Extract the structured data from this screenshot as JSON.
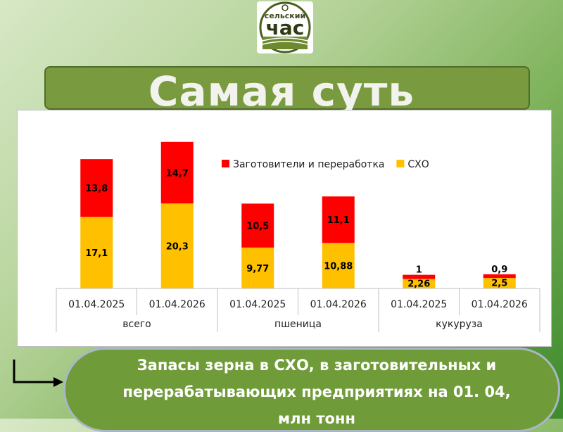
{
  "logo": {
    "text_top": "сельский",
    "text_main": "час"
  },
  "banner": {
    "title": "Самая суть"
  },
  "caption": {
    "line1": "Запасы зерна в СХО,  в заготовительных и",
    "line2": "перерабатывающих предприятиях  на 01. 04,",
    "line3": "млн тонн"
  },
  "chart_data": {
    "type": "bar",
    "stacked": true,
    "title": "",
    "categories": [
      "01.04.2025",
      "01.04.2026",
      "01.04.2025",
      "01.04.2026",
      "01.04.2025",
      "01.04.2026"
    ],
    "groups": [
      {
        "label": "всего",
        "categories": [
          0,
          1
        ]
      },
      {
        "label": "пшеница",
        "categories": [
          2,
          3
        ]
      },
      {
        "label": "кукуруза",
        "categories": [
          4,
          5
        ]
      }
    ],
    "series": [
      {
        "name": "СХО",
        "color": "#ffc000",
        "values": [
          17.1,
          20.3,
          9.77,
          10.88,
          2.26,
          2.5
        ],
        "labels": [
          "17,1",
          "20,3",
          "9,77",
          "10,88",
          "2,26",
          "2,5"
        ]
      },
      {
        "name": "Заготовители и переработка",
        "color": "#ff0000",
        "values": [
          13.8,
          14.7,
          10.5,
          11.1,
          1,
          0.9
        ],
        "labels": [
          "13,8",
          "14,7",
          "10,5",
          "11,1",
          "1",
          "0,9"
        ]
      }
    ],
    "legend": {
      "position": "top-right",
      "order": [
        "Заготовители и переработка",
        "СХО"
      ]
    },
    "grid": false
  }
}
